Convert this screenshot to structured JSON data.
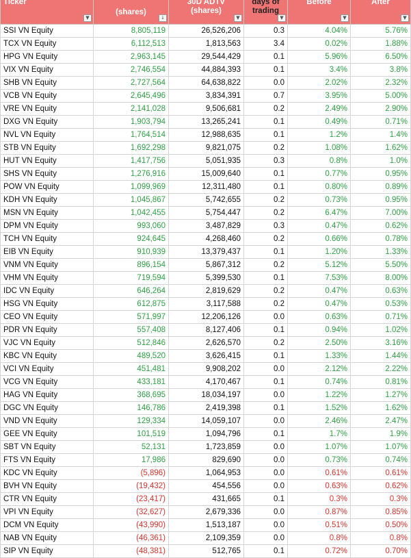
{
  "colors": {
    "header_bg": "#ef7575",
    "positive": "#2ea043",
    "negative": "#d9332c"
  },
  "header": {
    "ticker": "Ticker",
    "shares": "(shares)",
    "adtv": "30D ADTV (shares)",
    "days": "days of trading",
    "before": "Before",
    "after": "After",
    "filter_icon": "dropdown-arrow-icon"
  },
  "rows": [
    {
      "ticker": "SSI VN Equity",
      "shares": "8,805,119",
      "adtv": "26,526,206",
      "days": "0.3",
      "before": "4.04%",
      "after": "5.76%",
      "sign": "pos"
    },
    {
      "ticker": "TCX VN Equity",
      "shares": "6,112,513",
      "adtv": "1,813,563",
      "days": "3.4",
      "before": "0.02%",
      "after": "1.88%",
      "sign": "pos"
    },
    {
      "ticker": "HPG VN Equity",
      "shares": "2,963,145",
      "adtv": "29,544,429",
      "days": "0.1",
      "before": "5.96%",
      "after": "6.50%",
      "sign": "pos"
    },
    {
      "ticker": "VIX VN Equity",
      "shares": "2,746,554",
      "adtv": "44,884,393",
      "days": "0.1",
      "before": "3.4%",
      "after": "3.8%",
      "sign": "pos"
    },
    {
      "ticker": "SHB VN Equity",
      "shares": "2,727,564",
      "adtv": "64,638,822",
      "days": "0.0",
      "before": "2.02%",
      "after": "2.32%",
      "sign": "pos"
    },
    {
      "ticker": "VCB VN Equity",
      "shares": "2,645,496",
      "adtv": "3,834,391",
      "days": "0.7",
      "before": "3.95%",
      "after": "5.00%",
      "sign": "pos"
    },
    {
      "ticker": "VRE VN Equity",
      "shares": "2,141,028",
      "adtv": "9,506,681",
      "days": "0.2",
      "before": "2.49%",
      "after": "2.90%",
      "sign": "pos"
    },
    {
      "ticker": "DXG VN Equity",
      "shares": "1,903,794",
      "adtv": "13,265,241",
      "days": "0.1",
      "before": "0.49%",
      "after": "0.71%",
      "sign": "pos"
    },
    {
      "ticker": "NVL VN Equity",
      "shares": "1,764,514",
      "adtv": "12,988,635",
      "days": "0.1",
      "before": "1.2%",
      "after": "1.4%",
      "sign": "pos"
    },
    {
      "ticker": "STB VN Equity",
      "shares": "1,692,298",
      "adtv": "9,821,075",
      "days": "0.2",
      "before": "1.08%",
      "after": "1.62%",
      "sign": "pos"
    },
    {
      "ticker": "HUT VN Equity",
      "shares": "1,417,756",
      "adtv": "5,051,935",
      "days": "0.3",
      "before": "0.8%",
      "after": "1.0%",
      "sign": "pos"
    },
    {
      "ticker": "SHS VN Equity",
      "shares": "1,276,916",
      "adtv": "15,009,640",
      "days": "0.1",
      "before": "0.77%",
      "after": "0.95%",
      "sign": "pos"
    },
    {
      "ticker": "POW VN Equity",
      "shares": "1,099,969",
      "adtv": "12,311,480",
      "days": "0.1",
      "before": "0.80%",
      "after": "0.89%",
      "sign": "pos"
    },
    {
      "ticker": "KDH VN Equity",
      "shares": "1,045,867",
      "adtv": "5,742,655",
      "days": "0.2",
      "before": "0.73%",
      "after": "0.95%",
      "sign": "pos"
    },
    {
      "ticker": "MSN VN Equity",
      "shares": "1,042,455",
      "adtv": "5,754,447",
      "days": "0.2",
      "before": "6.47%",
      "after": "7.00%",
      "sign": "pos"
    },
    {
      "ticker": "DPM VN Equity",
      "shares": "993,060",
      "adtv": "3,487,829",
      "days": "0.3",
      "before": "0.47%",
      "after": "0.62%",
      "sign": "pos"
    },
    {
      "ticker": "TCH VN Equity",
      "shares": "924,645",
      "adtv": "4,268,460",
      "days": "0.2",
      "before": "0.66%",
      "after": "0.78%",
      "sign": "pos"
    },
    {
      "ticker": "EIB VN Equity",
      "shares": "910,939",
      "adtv": "13,379,437",
      "days": "0.1",
      "before": "1.20%",
      "after": "1.33%",
      "sign": "pos"
    },
    {
      "ticker": "VNM VN Equity",
      "shares": "896,154",
      "adtv": "5,867,312",
      "days": "0.2",
      "before": "5.12%",
      "after": "5.50%",
      "sign": "pos"
    },
    {
      "ticker": "VHM VN Equity",
      "shares": "719,594",
      "adtv": "5,399,530",
      "days": "0.1",
      "before": "7.53%",
      "after": "8.00%",
      "sign": "pos"
    },
    {
      "ticker": "IDC VN Equity",
      "shares": "646,264",
      "adtv": "2,819,629",
      "days": "0.2",
      "before": "0.47%",
      "after": "0.63%",
      "sign": "pos"
    },
    {
      "ticker": "HSG VN Equity",
      "shares": "612,875",
      "adtv": "3,117,588",
      "days": "0.2",
      "before": "0.47%",
      "after": "0.53%",
      "sign": "pos"
    },
    {
      "ticker": "CEO VN Equity",
      "shares": "571,997",
      "adtv": "12,206,126",
      "days": "0.0",
      "before": "0.63%",
      "after": "0.71%",
      "sign": "pos"
    },
    {
      "ticker": "PDR VN Equity",
      "shares": "557,408",
      "adtv": "8,127,406",
      "days": "0.1",
      "before": "0.94%",
      "after": "1.02%",
      "sign": "pos"
    },
    {
      "ticker": "VJC VN Equity",
      "shares": "512,846",
      "adtv": "2,626,570",
      "days": "0.2",
      "before": "2.50%",
      "after": "3.16%",
      "sign": "pos"
    },
    {
      "ticker": "KBC VN Equity",
      "shares": "489,520",
      "adtv": "3,626,415",
      "days": "0.1",
      "before": "1.33%",
      "after": "1.44%",
      "sign": "pos"
    },
    {
      "ticker": "VCI VN Equity",
      "shares": "451,481",
      "adtv": "9,908,202",
      "days": "0.0",
      "before": "2.12%",
      "after": "2.22%",
      "sign": "pos"
    },
    {
      "ticker": "VCG VN Equity",
      "shares": "433,181",
      "adtv": "4,170,467",
      "days": "0.1",
      "before": "0.74%",
      "after": "0.81%",
      "sign": "pos"
    },
    {
      "ticker": "HAG VN Equity",
      "shares": "368,695",
      "adtv": "18,034,197",
      "days": "0.0",
      "before": "1.22%",
      "after": "1.27%",
      "sign": "pos"
    },
    {
      "ticker": "DGC VN Equity",
      "shares": "146,786",
      "adtv": "2,419,398",
      "days": "0.1",
      "before": "1.52%",
      "after": "1.62%",
      "sign": "pos"
    },
    {
      "ticker": "VND VN Equity",
      "shares": "129,334",
      "adtv": "14,059,107",
      "days": "0.0",
      "before": "2.46%",
      "after": "2.47%",
      "sign": "pos"
    },
    {
      "ticker": "GEE VN Equity",
      "shares": "101,519",
      "adtv": "1,094,796",
      "days": "0.1",
      "before": "1.7%",
      "after": "1.9%",
      "sign": "pos"
    },
    {
      "ticker": "SBT VN Equity",
      "shares": "52,131",
      "adtv": "1,723,859",
      "days": "0.0",
      "before": "1.07%",
      "after": "1.07%",
      "sign": "pos"
    },
    {
      "ticker": "FTS VN Equity",
      "shares": "17,986",
      "adtv": "829,690",
      "days": "0.0",
      "before": "0.73%",
      "after": "0.74%",
      "sign": "pos"
    },
    {
      "ticker": "KDC VN Equity",
      "shares": "(5,896)",
      "adtv": "1,064,953",
      "days": "0.0",
      "before": "0.61%",
      "after": "0.61%",
      "sign": "neg"
    },
    {
      "ticker": "BVH VN Equity",
      "shares": "(19,432)",
      "adtv": "454,556",
      "days": "0.0",
      "before": "0.63%",
      "after": "0.62%",
      "sign": "neg"
    },
    {
      "ticker": "CTR VN Equity",
      "shares": "(23,417)",
      "adtv": "431,665",
      "days": "0.1",
      "before": "0.3%",
      "after": "0.3%",
      "sign": "neg"
    },
    {
      "ticker": "VPI VN Equity",
      "shares": "(32,627)",
      "adtv": "2,679,336",
      "days": "0.0",
      "before": "0.87%",
      "after": "0.85%",
      "sign": "neg"
    },
    {
      "ticker": "DCM VN Equity",
      "shares": "(43,990)",
      "adtv": "1,513,187",
      "days": "0.0",
      "before": "0.51%",
      "after": "0.50%",
      "sign": "neg"
    },
    {
      "ticker": "NAB VN Equity",
      "shares": "(46,361)",
      "adtv": "2,109,359",
      "days": "0.0",
      "before": "0.8%",
      "after": "0.8%",
      "sign": "neg"
    },
    {
      "ticker": "SIP VN Equity",
      "shares": "(48,381)",
      "adtv": "512,765",
      "days": "0.1",
      "before": "0.72%",
      "after": "0.70%",
      "sign": "neg"
    }
  ]
}
